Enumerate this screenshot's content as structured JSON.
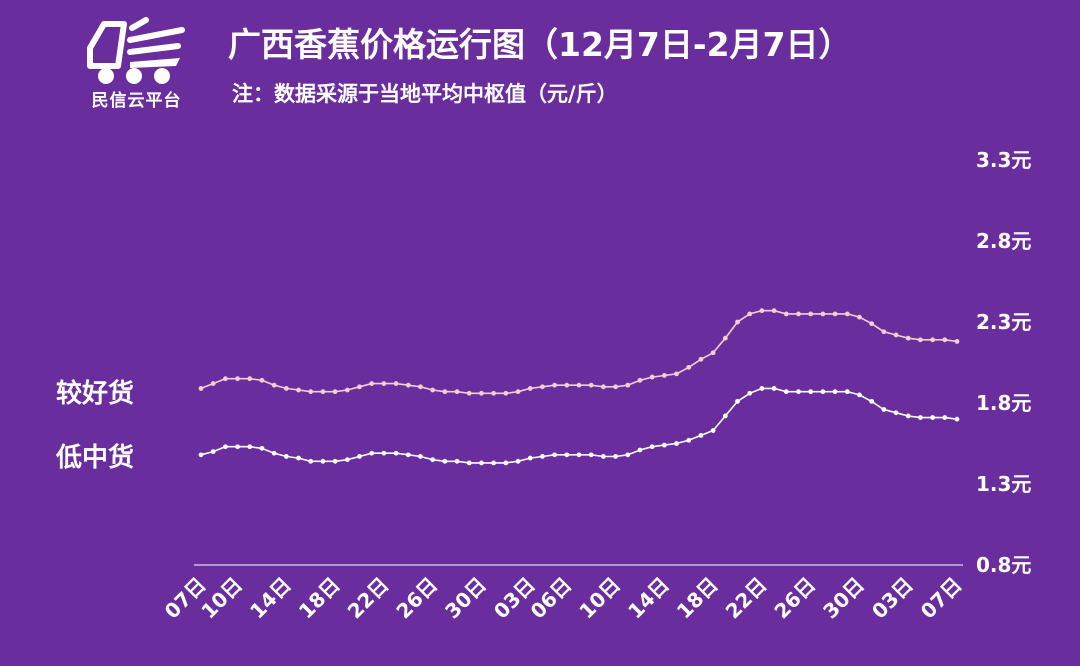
{
  "header": {
    "title": "广西香蕉价格运行图（12月7日-2月7日）",
    "subtitle": "注：数据采源于当地平均中枢值（元/斤）",
    "logo_text": "民信云平台"
  },
  "colors": {
    "background": "#6a2d9d",
    "line_good": "#f3cfd2",
    "line_low": "#ffffff",
    "axis": "#ffffff"
  },
  "chart_data": {
    "type": "line",
    "y_unit": "元",
    "ylim": [
      0.8,
      3.3
    ],
    "y_ticks": [
      0.8,
      1.3,
      1.8,
      2.3,
      2.8,
      3.3
    ],
    "y_tick_labels": [
      "0.8元",
      "1.3元",
      "1.8元",
      "2.3元",
      "2.8元",
      "3.3元"
    ],
    "x_tick_labels": [
      "07日",
      "10日",
      "14日",
      "18日",
      "22日",
      "26日",
      "30日",
      "03日",
      "06日",
      "10日",
      "14日",
      "18日",
      "22日",
      "26日",
      "30日",
      "03日",
      "07日"
    ],
    "x_tick_index": [
      0,
      3,
      7,
      11,
      15,
      19,
      23,
      27,
      30,
      34,
      38,
      42,
      46,
      50,
      54,
      58,
      62
    ],
    "grid": false,
    "series": [
      {
        "name": "较好货",
        "values": [
          1.89,
          1.92,
          1.95,
          1.95,
          1.95,
          1.94,
          1.91,
          1.89,
          1.88,
          1.87,
          1.87,
          1.87,
          1.88,
          1.9,
          1.92,
          1.92,
          1.92,
          1.91,
          1.9,
          1.88,
          1.87,
          1.87,
          1.86,
          1.86,
          1.86,
          1.86,
          1.87,
          1.89,
          1.9,
          1.91,
          1.91,
          1.91,
          1.91,
          1.9,
          1.9,
          1.91,
          1.94,
          1.96,
          1.97,
          1.98,
          2.02,
          2.07,
          2.11,
          2.2,
          2.3,
          2.35,
          2.37,
          2.37,
          2.35,
          2.35,
          2.35,
          2.35,
          2.35,
          2.35,
          2.33,
          2.29,
          2.24,
          2.22,
          2.2,
          2.19,
          2.19,
          2.19,
          2.18
        ]
      },
      {
        "name": "低中货",
        "values": [
          1.48,
          1.5,
          1.53,
          1.53,
          1.53,
          1.52,
          1.49,
          1.47,
          1.46,
          1.44,
          1.44,
          1.44,
          1.45,
          1.47,
          1.49,
          1.49,
          1.49,
          1.48,
          1.47,
          1.45,
          1.44,
          1.44,
          1.43,
          1.43,
          1.43,
          1.43,
          1.44,
          1.46,
          1.47,
          1.48,
          1.48,
          1.48,
          1.48,
          1.47,
          1.47,
          1.48,
          1.51,
          1.53,
          1.54,
          1.55,
          1.57,
          1.6,
          1.63,
          1.72,
          1.81,
          1.86,
          1.89,
          1.89,
          1.87,
          1.87,
          1.87,
          1.87,
          1.87,
          1.87,
          1.85,
          1.81,
          1.76,
          1.74,
          1.72,
          1.71,
          1.71,
          1.71,
          1.7
        ]
      }
    ]
  }
}
